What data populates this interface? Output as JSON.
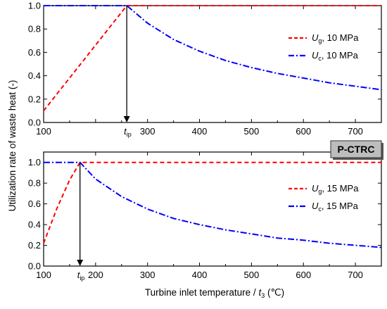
{
  "figure": {
    "ylabel": "Utilization rate of waste heat (-)",
    "xlabel_main": "Turbine inlet temperature / ",
    "xlabel_var": "t",
    "xlabel_sub": "3",
    "xlabel_unit": " (℃)",
    "badge": "P-CTRC"
  },
  "chart_data": [
    {
      "type": "line",
      "panel": "top",
      "xlim": [
        100,
        750
      ],
      "ylim": [
        0.0,
        1.0
      ],
      "x_ticks": [
        100,
        200,
        300,
        400,
        500,
        600,
        700
      ],
      "x_tick_labels": [
        "100",
        "",
        "300",
        "400",
        "500",
        "600",
        "700"
      ],
      "y_ticks": [
        0.0,
        0.2,
        0.4,
        0.6,
        0.8,
        1.0
      ],
      "y_tick_labels": [
        "0.0",
        "0.2",
        "0.4",
        "0.6",
        "0.8",
        "1.0"
      ],
      "grid": false,
      "legend_placement": "right",
      "marker": {
        "var": "t",
        "sub": "ip",
        "x": 260
      },
      "series": [
        {
          "name_var": "U",
          "name_sub": "g",
          "name_rest": ", 10 MPa",
          "color": "#ff0000",
          "style": "dashed",
          "x": [
            100,
            260,
            750
          ],
          "y": [
            0.1,
            1.0,
            1.0
          ]
        },
        {
          "name_var": "U",
          "name_sub": "c",
          "name_rest": ", 10 MPa",
          "color": "#0000ff",
          "style": "dashdot",
          "x": [
            100,
            260,
            300,
            350,
            400,
            450,
            500,
            550,
            600,
            650,
            700,
            750
          ],
          "y": [
            1.0,
            1.0,
            0.85,
            0.71,
            0.61,
            0.53,
            0.47,
            0.42,
            0.38,
            0.34,
            0.31,
            0.28
          ]
        }
      ]
    },
    {
      "type": "line",
      "panel": "bottom",
      "xlim": [
        100,
        750
      ],
      "ylim": [
        0.0,
        1.1
      ],
      "x_ticks": [
        100,
        200,
        300,
        400,
        500,
        600,
        700
      ],
      "x_tick_labels": [
        "100",
        "200",
        "300",
        "400",
        "500",
        "600",
        "700"
      ],
      "y_ticks": [
        0.0,
        0.2,
        0.4,
        0.6,
        0.8,
        1.0
      ],
      "y_tick_labels": [
        "0.0",
        "0.2",
        "0.4",
        "0.6",
        "0.8",
        "1.0"
      ],
      "grid": false,
      "legend_placement": "right",
      "marker": {
        "var": "t",
        "sub": "ip",
        "x": 170
      },
      "series": [
        {
          "name_var": "U",
          "name_sub": "g",
          "name_rest": ", 15 MPa",
          "color": "#ff0000",
          "style": "dashed",
          "x": [
            100,
            125,
            150,
            170,
            750
          ],
          "y": [
            0.22,
            0.55,
            0.83,
            1.0,
            1.0
          ]
        },
        {
          "name_var": "U",
          "name_sub": "c",
          "name_rest": ", 15 MPa",
          "color": "#0000ff",
          "style": "dashdot",
          "x": [
            100,
            170,
            200,
            250,
            300,
            350,
            400,
            450,
            500,
            550,
            600,
            650,
            700,
            750
          ],
          "y": [
            1.0,
            1.0,
            0.84,
            0.67,
            0.55,
            0.46,
            0.4,
            0.35,
            0.31,
            0.27,
            0.25,
            0.22,
            0.2,
            0.18
          ]
        }
      ]
    }
  ]
}
